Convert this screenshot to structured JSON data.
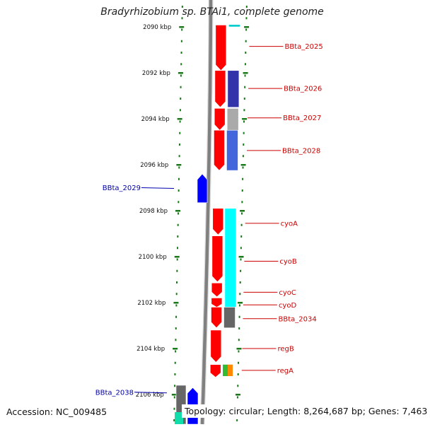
{
  "title": "Bradyrhizobium sp. BTAi1, complete genome",
  "footer": {
    "accession": "Accession: NC_009485",
    "summary": "Topology: circular; Length: 8,264,687 bp; Genes: 7,463"
  },
  "colors": {
    "backbone": "#808080",
    "tick": "#1a7a1a",
    "forward_gene": "#ff0000",
    "reverse_gene": "#0000ff",
    "label_forward": "#cc0000",
    "label_reverse": "#0000aa",
    "cyan_feature": "#00ffff"
  },
  "scale": {
    "unit": "kbp",
    "ticks": [
      {
        "kbp": 2090,
        "label": "2090 kbp"
      },
      {
        "kbp": 2092,
        "label": "2092 kbp"
      },
      {
        "kbp": 2094,
        "label": "2094 kbp"
      },
      {
        "kbp": 2096,
        "label": "2096 kbp"
      },
      {
        "kbp": 2098,
        "label": "2098 kbp"
      },
      {
        "kbp": 2100,
        "label": "2100 kbp"
      },
      {
        "kbp": 2102,
        "label": "2102 kbp"
      },
      {
        "kbp": 2104,
        "label": "2104 kbp"
      },
      {
        "kbp": 2106,
        "label": "2106 kbp"
      }
    ]
  },
  "features": [
    {
      "id": "f1",
      "label": "",
      "strand": "+",
      "start": 2089.92,
      "end": 2091.9,
      "track": "gene",
      "color": "#ff0000"
    },
    {
      "id": "f2",
      "label": "BBta_2025",
      "strand": "",
      "start": 2090.5,
      "end": 2090.7,
      "track": "label",
      "color": ""
    },
    {
      "id": "f3",
      "label": "BBta_2026",
      "strand": "+",
      "start": 2091.9,
      "end": 2093.5,
      "track": "gene",
      "color": "#ff0000"
    },
    {
      "id": "f4",
      "label": "BBta_2027",
      "strand": "+",
      "start": 2093.55,
      "end": 2094.5,
      "track": "gene",
      "color": "#ff0000"
    },
    {
      "id": "f5",
      "label": "BBta_2028",
      "strand": "+",
      "start": 2094.5,
      "end": 2096.25,
      "track": "gene",
      "color": "#ff0000"
    },
    {
      "id": "f6",
      "label": "BBta_2029",
      "strand": "-",
      "start": 2096.4,
      "end": 2097.65,
      "track": "reverse",
      "color": "#0000ff"
    },
    {
      "id": "f7",
      "label": "cyoA",
      "strand": "+",
      "start": 2097.9,
      "end": 2099.05,
      "track": "gene",
      "color": "#ff0000"
    },
    {
      "id": "f8",
      "label": "cyoB",
      "strand": "+",
      "start": 2099.1,
      "end": 2101.1,
      "track": "gene",
      "color": "#ff0000"
    },
    {
      "id": "f9",
      "label": "cyoC",
      "strand": "+",
      "start": 2101.15,
      "end": 2101.75,
      "track": "gene",
      "color": "#ff0000"
    },
    {
      "id": "f10",
      "label": "cyoD",
      "strand": "+",
      "start": 2101.8,
      "end": 2102.2,
      "track": "gene",
      "color": "#ff0000"
    },
    {
      "id": "f11",
      "label": "BBta_2034",
      "strand": "+",
      "start": 2102.2,
      "end": 2103.1,
      "track": "gene",
      "color": "#ff0000"
    },
    {
      "id": "f12",
      "label": "regB",
      "strand": "+",
      "start": 2103.2,
      "end": 2104.6,
      "track": "gene",
      "color": "#ff0000"
    },
    {
      "id": "f13",
      "label": "regA",
      "strand": "+",
      "start": 2104.7,
      "end": 2105.25,
      "track": "gene",
      "color": "#ff0000"
    },
    {
      "id": "f14",
      "label": "BBta_2038",
      "strand": "-",
      "start": 2105.7,
      "end": 2107.5,
      "track": "reverse",
      "color": "#0000ff"
    }
  ],
  "labels": [
    {
      "text": "BBta_2025",
      "side": "right",
      "kbp": 2090.85
    },
    {
      "text": "BBta_2026",
      "side": "right",
      "kbp": 2092.68
    },
    {
      "text": "BBta_2027",
      "side": "right",
      "kbp": 2093.96
    },
    {
      "text": "BBta_2028",
      "side": "right",
      "kbp": 2095.38
    },
    {
      "text": "BBta_2029",
      "side": "left",
      "kbp": 2097.0
    },
    {
      "text": "cyoA",
      "side": "right",
      "kbp": 2098.55
    },
    {
      "text": "cyoB",
      "side": "right",
      "kbp": 2100.2
    },
    {
      "text": "cyoC",
      "side": "right",
      "kbp": 2101.55
    },
    {
      "text": "cyoD",
      "side": "right",
      "kbp": 2102.1
    },
    {
      "text": "BBta_2034",
      "side": "right",
      "kbp": 2102.7
    },
    {
      "text": "regB",
      "side": "right",
      "kbp": 2104.0
    },
    {
      "text": "regA",
      "side": "right",
      "kbp": 2104.95
    },
    {
      "text": "BBta_2038",
      "side": "left",
      "kbp": 2105.9
    }
  ]
}
